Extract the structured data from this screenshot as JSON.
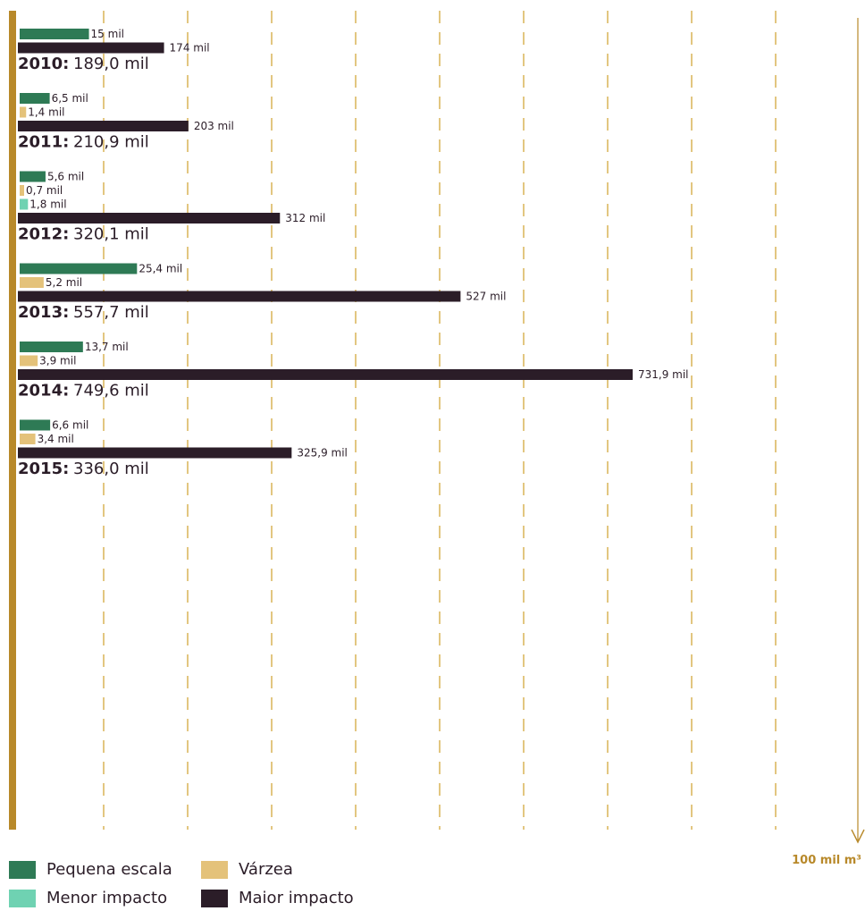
{
  "chart_data": {
    "type": "bar",
    "orientation": "horizontal",
    "unit_label": "100 mil m³",
    "colors": {
      "Pequena escala": "#2e7a55",
      "Várzea": "#e4c27a",
      "Menor impacto": "#6fd2b2",
      "Maior impacto": "#2b1d28",
      "axis": "#b8892a",
      "grid": "#e2c680"
    },
    "groups": [
      {
        "year": "2010:",
        "total_label": "189,0 mil",
        "bars": [
          {
            "series": "Pequena escala",
            "value": 15,
            "label": "15 mil"
          },
          {
            "series": "Maior impacto",
            "value": 174,
            "label": "174 mil"
          }
        ]
      },
      {
        "year": "2011:",
        "total_label": "210,9 mil",
        "bars": [
          {
            "series": "Pequena escala",
            "value": 6.5,
            "label": "6,5 mil"
          },
          {
            "series": "Várzea",
            "value": 1.4,
            "label": "1,4 mil"
          },
          {
            "series": "Maior impacto",
            "value": 203,
            "label": "203 mil"
          }
        ]
      },
      {
        "year": "2012:",
        "total_label": "320,1 mil",
        "bars": [
          {
            "series": "Pequena escala",
            "value": 5.6,
            "label": "5,6 mil"
          },
          {
            "series": "Várzea",
            "value": 0.7,
            "label": "0,7 mil"
          },
          {
            "series": "Menor impacto",
            "value": 1.8,
            "label": "1,8 mil"
          },
          {
            "series": "Maior impacto",
            "value": 312,
            "label": "312 mil"
          }
        ]
      },
      {
        "year": "2013:",
        "total_label": "557,7 mil",
        "bars": [
          {
            "series": "Pequena escala",
            "value": 25.4,
            "label": "25,4 mil"
          },
          {
            "series": "Várzea",
            "value": 5.2,
            "label": "5,2 mil"
          },
          {
            "series": "Maior impacto",
            "value": 527,
            "label": "527 mil"
          }
        ]
      },
      {
        "year": "2014:",
        "total_label": "749,6 mil",
        "bars": [
          {
            "series": "Pequena escala",
            "value": 13.7,
            "label": "13,7 mil"
          },
          {
            "series": "Várzea",
            "value": 3.9,
            "label": "3,9 mil"
          },
          {
            "series": "Maior impacto",
            "value": 731.9,
            "label": "731,9 mil"
          }
        ]
      },
      {
        "year": "2015:",
        "total_label": "336,0 mil",
        "bars": [
          {
            "series": "Pequena escala",
            "value": 6.6,
            "label": "6,6 mil"
          },
          {
            "series": "Várzea",
            "value": 3.4,
            "label": "3,4 mil"
          },
          {
            "series": "Maior impacto",
            "value": 325.9,
            "label": "325,9 mil"
          }
        ]
      }
    ],
    "legend": [
      {
        "name": "Pequena escala",
        "color": "#2e7a55"
      },
      {
        "name": "Várzea",
        "color": "#e4c27a"
      },
      {
        "name": "Menor impacto",
        "color": "#6fd2b2"
      },
      {
        "name": "Maior impacto",
        "color": "#2b1d28"
      }
    ]
  }
}
